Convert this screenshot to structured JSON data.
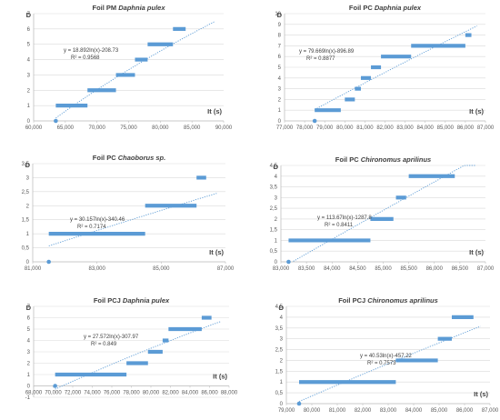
{
  "chart_data": [
    {
      "type": "scatter",
      "title_plain": "Foil PM",
      "title_species": "Daphnia pulex",
      "ylabel": "D",
      "xlabel": "It (s)",
      "xlim": [
        60000,
        90000
      ],
      "xtick_values": [
        60000,
        65000,
        70000,
        75000,
        80000,
        85000,
        90000
      ],
      "xtick_labels": [
        "60,000",
        "65,000",
        "70,000",
        "75,000",
        "80,000",
        "85,000",
        "90,000"
      ],
      "ylim": [
        0,
        7
      ],
      "ytick_values": [
        0,
        1,
        2,
        3,
        4,
        5,
        6,
        7
      ],
      "ytick_labels": [
        "0",
        "1",
        "2",
        "3",
        "4",
        "5",
        "6",
        "7"
      ],
      "point": {
        "x": 63500,
        "y": 0
      },
      "steps": [
        {
          "x0": 63500,
          "x1": 68500,
          "y": 1
        },
        {
          "x0": 68500,
          "x1": 73000,
          "y": 2
        },
        {
          "x0": 73000,
          "x1": 76000,
          "y": 3
        },
        {
          "x0": 76000,
          "x1": 78000,
          "y": 4
        },
        {
          "x0": 78000,
          "x1": 82000,
          "y": 5
        },
        {
          "x0": 82000,
          "x1": 84000,
          "y": 6
        }
      ],
      "trend": {
        "a": 18.892,
        "b": -208.73
      },
      "equation": "y = 18.892ln(x)-208.73",
      "r2": "R² = 0.9568",
      "grid": true,
      "colors": {
        "marker": "#5B9BD5",
        "trend": "#5B9BD5"
      }
    },
    {
      "type": "scatter",
      "title_plain": "Foil PC",
      "title_species": "Daphnia pulex",
      "ylabel": "D",
      "xlabel": "It (s)",
      "xlim": [
        77000,
        87000
      ],
      "xtick_values": [
        77000,
        78000,
        79000,
        80000,
        81000,
        82000,
        83000,
        84000,
        85000,
        86000,
        87000
      ],
      "xtick_labels": [
        "77,000",
        "78,000",
        "79,000",
        "80,000",
        "81,000",
        "82,000",
        "83,000",
        "84,000",
        "85,000",
        "86,000",
        "87,000"
      ],
      "ylim": [
        0,
        10
      ],
      "ytick_values": [
        0,
        1,
        2,
        3,
        4,
        5,
        6,
        7,
        8,
        9,
        10
      ],
      "ytick_labels": [
        "0",
        "1",
        "2",
        "3",
        "4",
        "5",
        "6",
        "7",
        "8",
        "9",
        "10"
      ],
      "point": {
        "x": 78500,
        "y": 0
      },
      "steps": [
        {
          "x0": 78500,
          "x1": 79800,
          "y": 1
        },
        {
          "x0": 80000,
          "x1": 80500,
          "y": 2
        },
        {
          "x0": 80500,
          "x1": 80800,
          "y": 3
        },
        {
          "x0": 80800,
          "x1": 81300,
          "y": 4
        },
        {
          "x0": 81300,
          "x1": 81800,
          "y": 5
        },
        {
          "x0": 81800,
          "x1": 83300,
          "y": 6
        },
        {
          "x0": 83300,
          "x1": 86000,
          "y": 7
        },
        {
          "x0": 86000,
          "x1": 86300,
          "y": 8
        }
      ],
      "trend": {
        "a": 79.669,
        "b": -896.89
      },
      "equation": "y = 79.669ln(x)-896.89",
      "r2": "R² = 0.8877",
      "grid": true,
      "colors": {
        "marker": "#5B9BD5",
        "trend": "#5B9BD5"
      }
    },
    {
      "type": "scatter",
      "title_plain": "Foil PC",
      "title_species": "Chaoborus sp.",
      "ylabel": "D",
      "xlabel": "It (s)",
      "xlim": [
        81000,
        87000
      ],
      "xtick_values": [
        81000,
        83000,
        85000,
        87000
      ],
      "xtick_labels": [
        "81,000",
        "83,000",
        "85,000",
        "87,000"
      ],
      "ylim": [
        0,
        3.5
      ],
      "ytick_values": [
        0,
        0.5,
        1,
        1.5,
        2,
        2.5,
        3,
        3.5
      ],
      "ytick_labels": [
        "0",
        "0,5",
        "1",
        "1,5",
        "2",
        "2,5",
        "3",
        "3,5"
      ],
      "point": {
        "x": 81500,
        "y": 0
      },
      "steps": [
        {
          "x0": 81500,
          "x1": 84500,
          "y": 1
        },
        {
          "x0": 84500,
          "x1": 86100,
          "y": 2
        },
        {
          "x0": 86100,
          "x1": 86400,
          "y": 3
        }
      ],
      "trend": {
        "a": 30.157,
        "b": -340.46
      },
      "equation": "y = 30.157ln(x)-340.46",
      "r2": "R² = 0.7174",
      "grid": true,
      "colors": {
        "marker": "#5B9BD5",
        "trend": "#5B9BD5"
      }
    },
    {
      "type": "scatter",
      "title_plain": "Foil PC",
      "title_species": "Chironomus aprilinus",
      "ylabel": "D",
      "xlabel": "It (s)",
      "xlim": [
        83000,
        87000
      ],
      "xtick_values": [
        83000,
        83500,
        84000,
        84500,
        85000,
        85500,
        86000,
        86500,
        87000
      ],
      "xtick_labels": [
        "83,000",
        "83,500",
        "84,000",
        "84,500",
        "85,000",
        "85,500",
        "86,000",
        "86,500",
        "87,000"
      ],
      "ylim": [
        0,
        4.5
      ],
      "ytick_values": [
        0,
        0.5,
        1,
        1.5,
        2,
        2.5,
        3,
        3.5,
        4,
        4.5
      ],
      "ytick_labels": [
        "0",
        "0,5",
        "1",
        "1,5",
        "2",
        "2,5",
        "3",
        "3,5",
        "4",
        "4,5"
      ],
      "point": {
        "x": 83150,
        "y": 0
      },
      "steps": [
        {
          "x0": 83150,
          "x1": 84750,
          "y": 1
        },
        {
          "x0": 84750,
          "x1": 85200,
          "y": 2
        },
        {
          "x0": 85250,
          "x1": 85450,
          "y": 3
        },
        {
          "x0": 85500,
          "x1": 86400,
          "y": 4
        }
      ],
      "trend": {
        "a": 113.67,
        "b": -1287.8
      },
      "equation": "y = 113.67ln(x)-1287.8",
      "r2": "R² = 0.8411",
      "grid": true,
      "colors": {
        "marker": "#5B9BD5",
        "trend": "#5B9BD5"
      }
    },
    {
      "type": "scatter",
      "title_plain": "Foil PCJ",
      "title_species": "Daphnia pulex",
      "ylabel": "D",
      "xlabel": "It (s)",
      "xlim": [
        68000,
        88000
      ],
      "xtick_values": [
        68000,
        70000,
        72000,
        74000,
        76000,
        78000,
        80000,
        82000,
        84000,
        86000,
        88000
      ],
      "xtick_labels": [
        "68,000",
        "70,000",
        "72,000",
        "74,000",
        "76,000",
        "78,000",
        "80,000",
        "82,000",
        "84,000",
        "86,000",
        "88,000"
      ],
      "ylim": [
        -1,
        7
      ],
      "ytick_values": [
        -1,
        0,
        1,
        2,
        3,
        4,
        5,
        6,
        7
      ],
      "ytick_labels": [
        "-1",
        "0",
        "1",
        "2",
        "3",
        "4",
        "5",
        "6",
        "7"
      ],
      "point": {
        "x": 70200,
        "y": 0
      },
      "steps": [
        {
          "x0": 70200,
          "x1": 77500,
          "y": 1
        },
        {
          "x0": 77500,
          "x1": 79700,
          "y": 2
        },
        {
          "x0": 79700,
          "x1": 81200,
          "y": 3
        },
        {
          "x0": 81200,
          "x1": 81800,
          "y": 4
        },
        {
          "x0": 81800,
          "x1": 85200,
          "y": 5
        },
        {
          "x0": 85200,
          "x1": 86200,
          "y": 6
        }
      ],
      "trend": {
        "a": 27.572,
        "b": -307.97
      },
      "equation": "y = 27.572ln(x)-307.97",
      "r2": "R² = 0.849",
      "grid": true,
      "colors": {
        "marker": "#5B9BD5",
        "trend": "#5B9BD5"
      }
    },
    {
      "type": "scatter",
      "title_plain": "Foil PCJ",
      "title_species": "Chironomus aprilinus",
      "ylabel": "D",
      "xlabel": "It (s)",
      "xlim": [
        79000,
        87000
      ],
      "xtick_values": [
        79000,
        80000,
        81000,
        82000,
        83000,
        84000,
        85000,
        86000,
        87000
      ],
      "xtick_labels": [
        "79,000",
        "80,000",
        "81,000",
        "82,000",
        "83,000",
        "84,000",
        "85,000",
        "86,000",
        "87,000"
      ],
      "ylim": [
        0,
        4.5
      ],
      "ytick_values": [
        0,
        0.5,
        1,
        1.5,
        2,
        2.5,
        3,
        3.5,
        4,
        4.5
      ],
      "ytick_labels": [
        "0",
        "0,5",
        "1",
        "1,5",
        "2",
        "2,5",
        "3",
        "3,5",
        "4",
        "4,5"
      ],
      "point": {
        "x": 79500,
        "y": 0
      },
      "steps": [
        {
          "x0": 79500,
          "x1": 83300,
          "y": 1
        },
        {
          "x0": 83300,
          "x1": 84950,
          "y": 2
        },
        {
          "x0": 84950,
          "x1": 85500,
          "y": 3
        },
        {
          "x0": 85500,
          "x1": 86350,
          "y": 4
        }
      ],
      "trend": {
        "a": 40.53,
        "b": -457.22
      },
      "equation": "y = 40.53ln(x)-457.22",
      "r2": "R² = 0.7573",
      "grid": true,
      "colors": {
        "marker": "#5B9BD5",
        "trend": "#5B9BD5"
      }
    }
  ]
}
